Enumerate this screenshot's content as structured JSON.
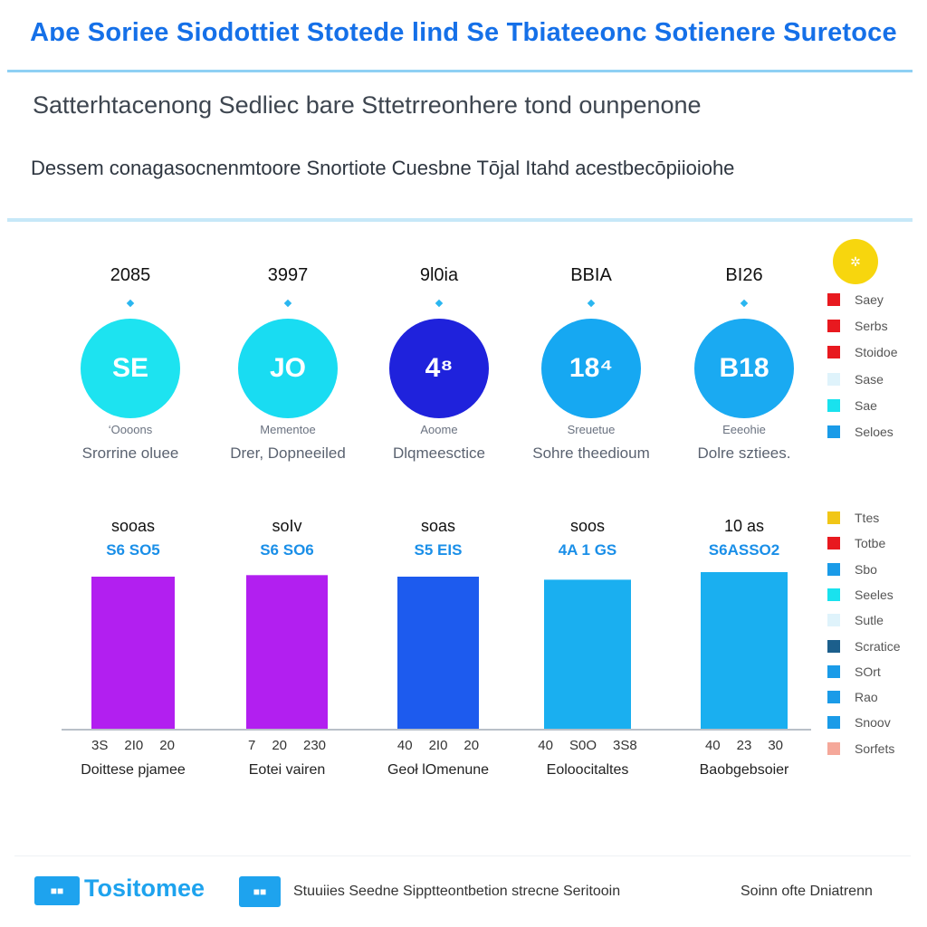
{
  "header": {
    "title": "Aɒe Soriee Siodottiet Stotede lind  Se Tbiateeonc Sotienere Suretoce",
    "subtitle": "Satterhtacenong Sedliec bare Sttetrreonhere tond ounpenone",
    "description": "Dessem conagasocnenmtoore Snortiote Cuesbne Tōjal Itahd acestbecōpiioiohe"
  },
  "stats": [
    {
      "top": "2085",
      "value": "SE",
      "small": "‘Oooons",
      "label": "Srorrine oluee",
      "color": "#1de3f0"
    },
    {
      "top": "3997",
      "value": "JO",
      "small": "Mementoe",
      "label": "Drer, Dopneeiled",
      "color": "#19dcf2"
    },
    {
      "top": "9l0ia",
      "value": "4⁸",
      "small": "Aoome",
      "label": "Dlqmeesctice",
      "color": "#1f22dc"
    },
    {
      "top": "BBIA",
      "value": "18⁴",
      "small": "Sreuetue",
      "label": "Sohre theedioum",
      "color": "#16a8f2"
    },
    {
      "top": "BI26",
      "value": "B18",
      "small": "Eeeohie",
      "label": "Dolre sztiees.",
      "color": "#1aaaf2"
    }
  ],
  "legend_top": {
    "icon": "sun-icon",
    "items": [
      {
        "label": "Saey",
        "color": "#e8191f"
      },
      {
        "label": "Serbs",
        "color": "#e8191f"
      },
      {
        "label": "Stoidoe",
        "color": "#e8191f"
      },
      {
        "label": "Sase",
        "color": "#dff3fb"
      },
      {
        "label": "Sae",
        "color": "#19e2ee"
      },
      {
        "label": "Seloes",
        "color": "#1a9be8"
      }
    ]
  },
  "legend_bottom": {
    "items": [
      {
        "label": "Ttes",
        "color": "#f1c617"
      },
      {
        "label": "Totbe",
        "color": "#e8191f"
      },
      {
        "label": "Sbo",
        "color": "#1a9be8"
      },
      {
        "label": "Seeles",
        "color": "#19e2ee"
      },
      {
        "label": "Sutle",
        "color": "#dff3fb"
      },
      {
        "label": "Scratice",
        "color": "#1c5f8c"
      },
      {
        "label": "SOrt",
        "color": "#1a9be8"
      },
      {
        "label": "Rao",
        "color": "#1a9be8"
      },
      {
        "label": "Snoov",
        "color": "#1a9be8"
      },
      {
        "label": "Sorfets",
        "color": "#f5a89a"
      }
    ]
  },
  "chart_data": {
    "type": "bar",
    "title": "",
    "ylim": [
      0,
      100
    ],
    "categories": [
      "Doittese pjamee",
      "Eotei vairen",
      "Geoł lOmenune",
      "Eoloocitaltes",
      "Baobgebsoier"
    ],
    "top_labels": [
      "sooas",
      "soIv",
      "soas",
      "soos",
      "10 as"
    ],
    "value_labels": [
      "S6 SO5",
      "S6 SO6",
      "S5 EIS",
      "4A 1 GS",
      "S6ASSO2"
    ],
    "values": [
      100,
      101,
      100,
      98,
      103
    ],
    "colors": [
      "#b21ff0",
      "#b21ff0",
      "#1d5bee",
      "#1aaff0",
      "#1aaff0"
    ],
    "ticks": [
      [
        "3S",
        "2I0",
        "20"
      ],
      [
        "7",
        "20",
        "230"
      ],
      [
        "40",
        "2I0",
        "20"
      ],
      [
        "40",
        "S0O",
        "3S8"
      ],
      [
        "40",
        "23",
        "30"
      ]
    ]
  },
  "footer": {
    "brand_icon_text": "■■",
    "brand": "Tositomee",
    "badge_text": "■■",
    "text": "Stuuiies Seedne Sipptteontbetion strecne Seritooin",
    "right": "Soinn ofte Dniatrenn"
  }
}
